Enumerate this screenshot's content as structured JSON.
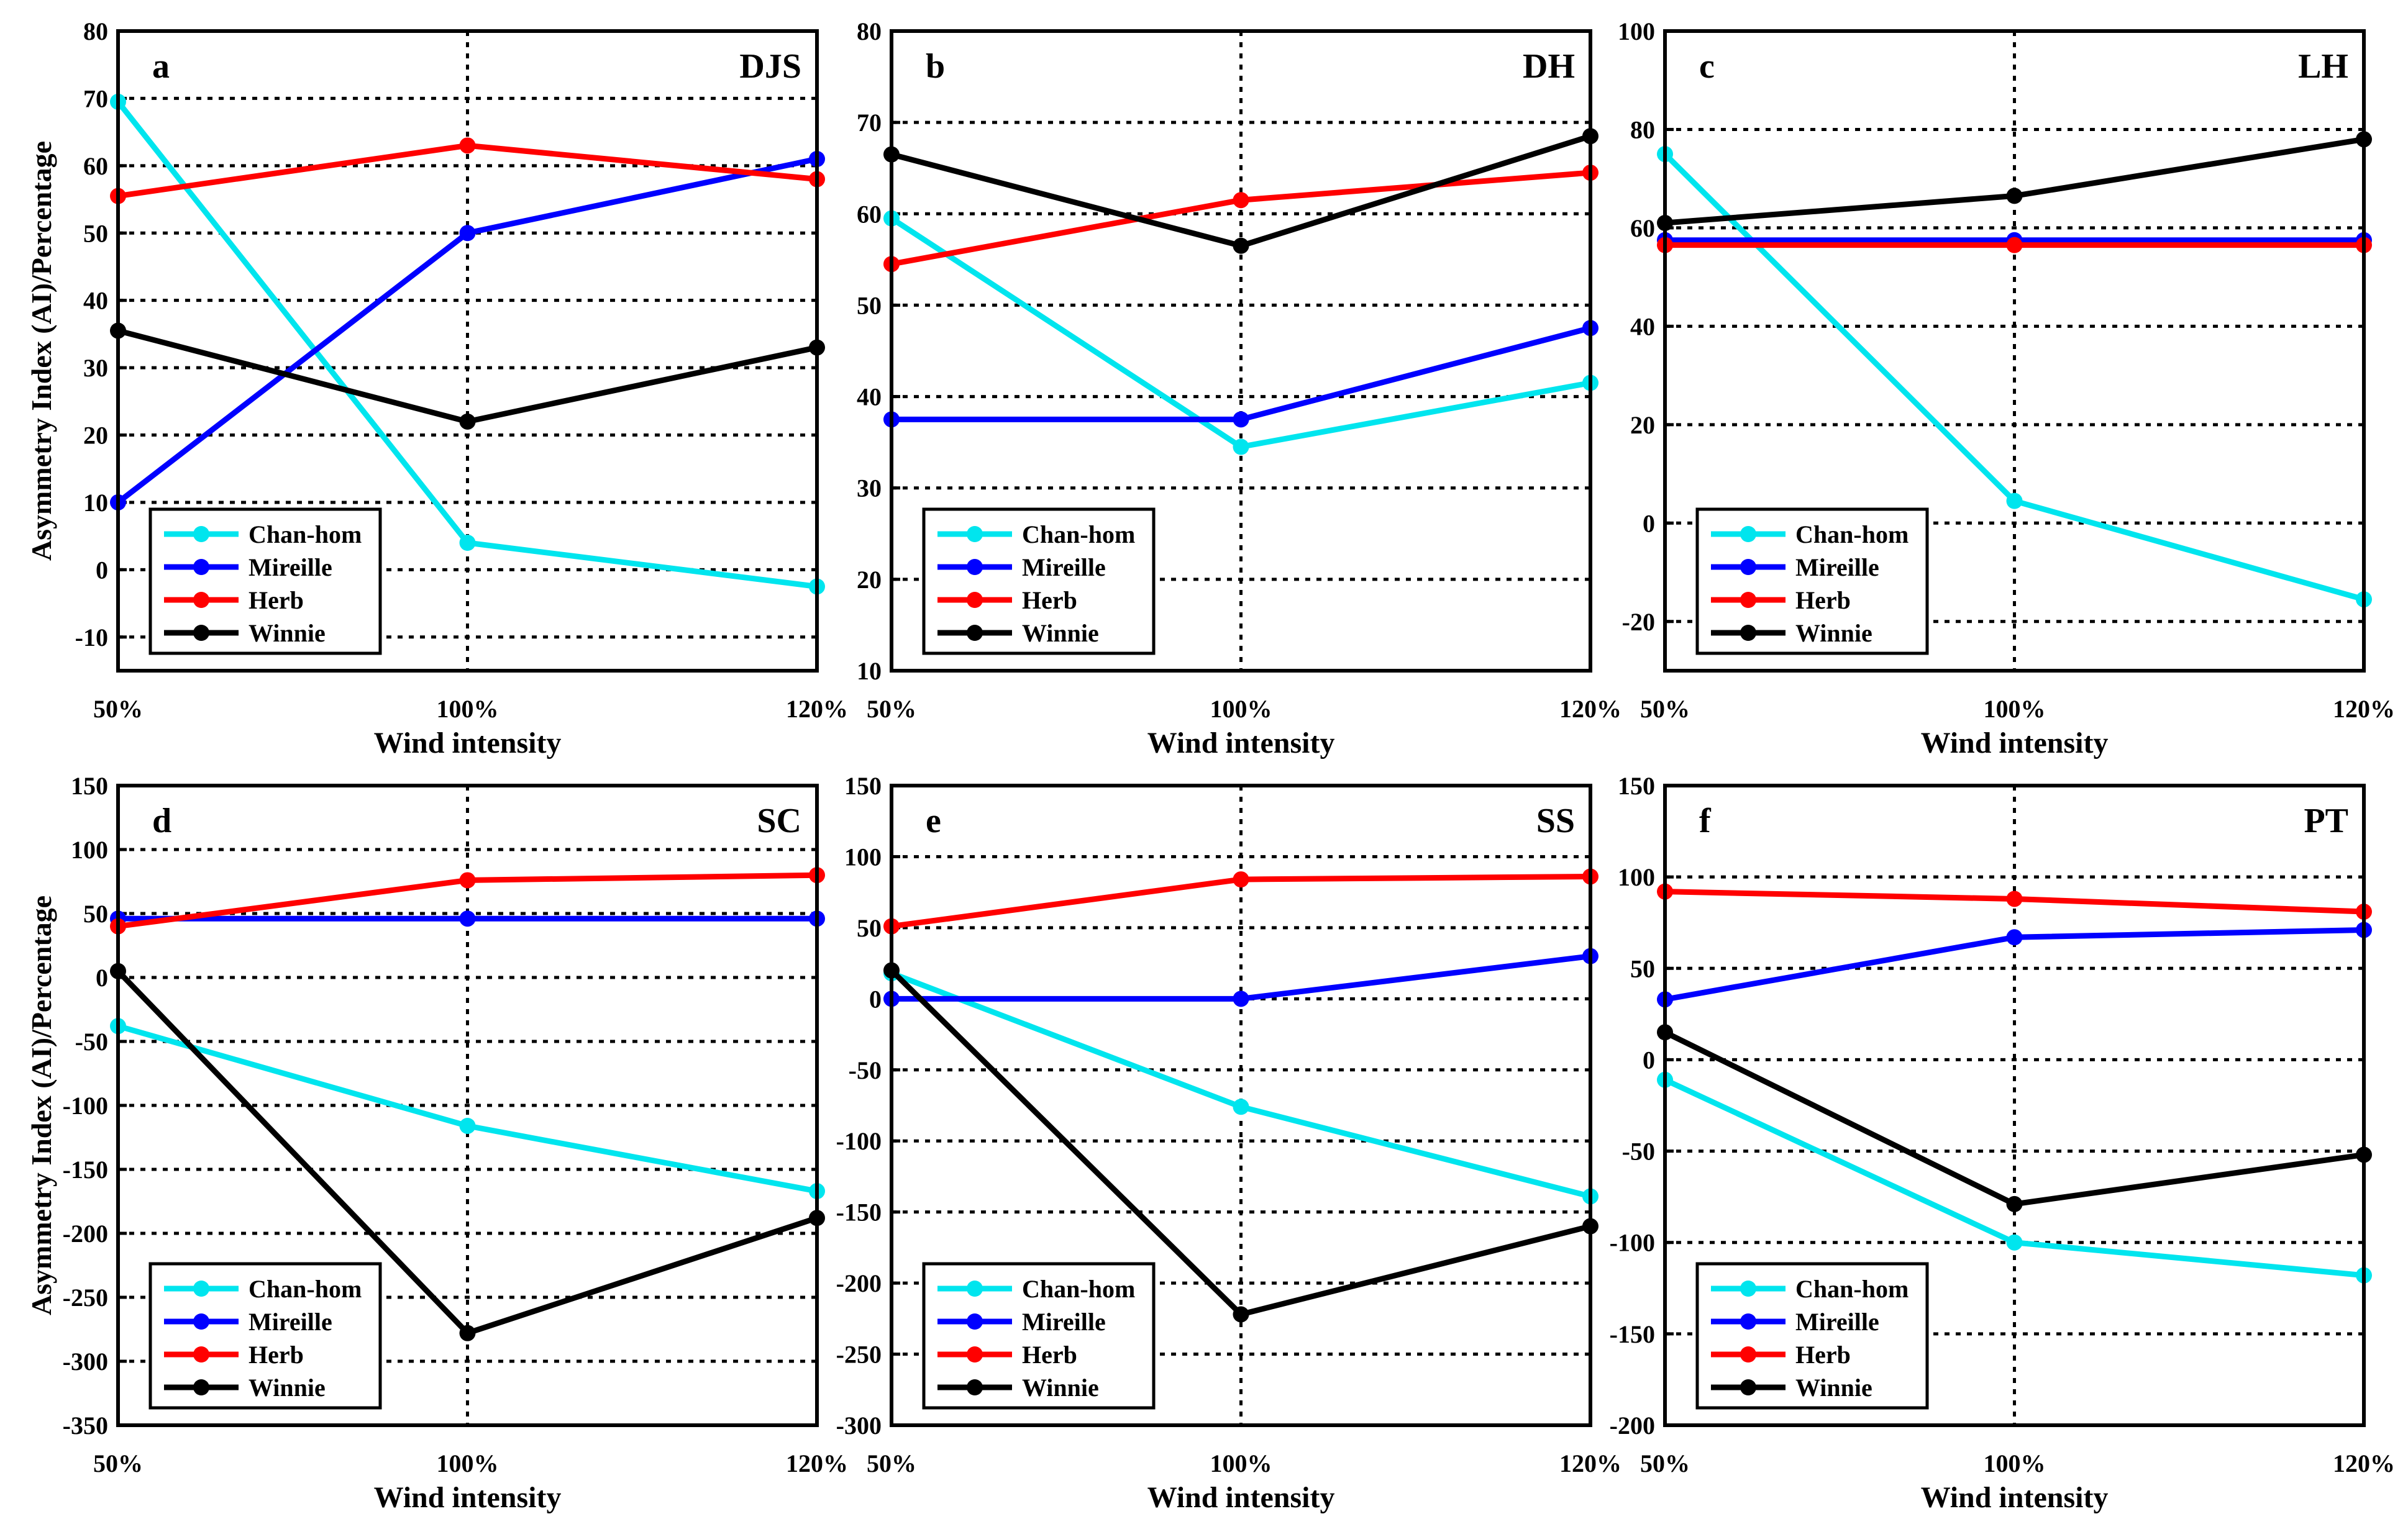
{
  "figure": {
    "xlabel": "Wind intensity",
    "ylabel": "Asymmetry Index (AI)/Percentage"
  },
  "series_meta": [
    {
      "name": "Chan-hom",
      "color": "#00E5EE"
    },
    {
      "name": "Mireille",
      "color": "#0000FF"
    },
    {
      "name": "Herb",
      "color": "#FF0000"
    },
    {
      "name": "Winnie",
      "color": "#000000"
    }
  ],
  "chart_data": [
    {
      "type": "line",
      "panel": "a",
      "title": "DJS",
      "xlabel": "Wind intensity",
      "ylabel": "Asymmetry Index (AI)/Percentage",
      "categories": [
        "50%",
        "100%",
        "120%"
      ],
      "ylim": [
        -15,
        80
      ],
      "yticks": [
        -10,
        0,
        10,
        20,
        30,
        40,
        50,
        60,
        70,
        80
      ],
      "grid": true,
      "legend": "bottom-left",
      "series": [
        {
          "name": "Chan-hom",
          "values": [
            69.5,
            4,
            -2.5
          ]
        },
        {
          "name": "Mireille",
          "values": [
            10,
            50,
            61
          ]
        },
        {
          "name": "Herb",
          "values": [
            55.5,
            63,
            58
          ]
        },
        {
          "name": "Winnie",
          "values": [
            35.5,
            22,
            33
          ]
        }
      ]
    },
    {
      "type": "line",
      "panel": "b",
      "title": "DH",
      "xlabel": "Wind intensity",
      "ylabel": "",
      "categories": [
        "50%",
        "100%",
        "120%"
      ],
      "ylim": [
        10,
        80
      ],
      "yticks": [
        10,
        20,
        30,
        40,
        50,
        60,
        70,
        80
      ],
      "grid": true,
      "legend": "bottom-left",
      "series": [
        {
          "name": "Chan-hom",
          "values": [
            59.5,
            34.5,
            41.5
          ]
        },
        {
          "name": "Mireille",
          "values": [
            37.5,
            37.5,
            47.5
          ]
        },
        {
          "name": "Herb",
          "values": [
            54.5,
            61.5,
            64.5
          ]
        },
        {
          "name": "Winnie",
          "values": [
            66.5,
            56.5,
            68.5
          ]
        }
      ]
    },
    {
      "type": "line",
      "panel": "c",
      "title": "LH",
      "xlabel": "Wind intensity",
      "ylabel": "",
      "categories": [
        "50%",
        "100%",
        "120%"
      ],
      "ylim": [
        -30,
        100
      ],
      "yticks": [
        -20,
        0,
        20,
        40,
        60,
        80,
        100
      ],
      "grid": true,
      "legend": "bottom-left",
      "series": [
        {
          "name": "Chan-hom",
          "values": [
            75,
            4.5,
            -15.5
          ]
        },
        {
          "name": "Mireille",
          "values": [
            57.5,
            57.5,
            57.5
          ]
        },
        {
          "name": "Herb",
          "values": [
            56.5,
            56.5,
            56.5
          ]
        },
        {
          "name": "Winnie",
          "values": [
            61,
            66.5,
            78
          ]
        }
      ]
    },
    {
      "type": "line",
      "panel": "d",
      "title": "SC",
      "xlabel": "Wind intensity",
      "ylabel": "Asymmetry Index (AI)/Percentage",
      "categories": [
        "50%",
        "100%",
        "120%"
      ],
      "ylim": [
        -350,
        150
      ],
      "yticks": [
        -350,
        -300,
        -250,
        -200,
        -150,
        -100,
        -50,
        0,
        50,
        100,
        150
      ],
      "grid": true,
      "legend": "bottom-left",
      "series": [
        {
          "name": "Chan-hom",
          "values": [
            -38,
            -116,
            -167
          ]
        },
        {
          "name": "Mireille",
          "values": [
            46,
            46,
            46
          ]
        },
        {
          "name": "Herb",
          "values": [
            40,
            76,
            80
          ]
        },
        {
          "name": "Winnie",
          "values": [
            5,
            -278,
            -188
          ]
        }
      ]
    },
    {
      "type": "line",
      "panel": "e",
      "title": "SS",
      "xlabel": "Wind intensity",
      "ylabel": "",
      "categories": [
        "50%",
        "100%",
        "120%"
      ],
      "ylim": [
        -300,
        150
      ],
      "yticks": [
        -300,
        -250,
        -200,
        -150,
        -100,
        -50,
        0,
        50,
        100,
        150
      ],
      "grid": true,
      "legend": "bottom-left",
      "series": [
        {
          "name": "Chan-hom",
          "values": [
            18,
            -76,
            -139
          ]
        },
        {
          "name": "Mireille",
          "values": [
            0,
            0,
            30
          ]
        },
        {
          "name": "Herb",
          "values": [
            51,
            84,
            86
          ]
        },
        {
          "name": "Winnie",
          "values": [
            20,
            -222,
            -160
          ]
        }
      ]
    },
    {
      "type": "line",
      "panel": "f",
      "title": "PT",
      "xlabel": "Wind intensity",
      "ylabel": "",
      "categories": [
        "50%",
        "100%",
        "120%"
      ],
      "ylim": [
        -200,
        150
      ],
      "yticks": [
        -200,
        -150,
        -100,
        -50,
        0,
        50,
        100,
        150
      ],
      "grid": true,
      "legend": "bottom-left",
      "series": [
        {
          "name": "Chan-hom",
          "values": [
            -11,
            -100,
            -118
          ]
        },
        {
          "name": "Mireille",
          "values": [
            33,
            67,
            71
          ]
        },
        {
          "name": "Herb",
          "values": [
            92,
            88,
            81
          ]
        },
        {
          "name": "Winnie",
          "values": [
            15,
            -79,
            -52
          ]
        }
      ]
    }
  ]
}
